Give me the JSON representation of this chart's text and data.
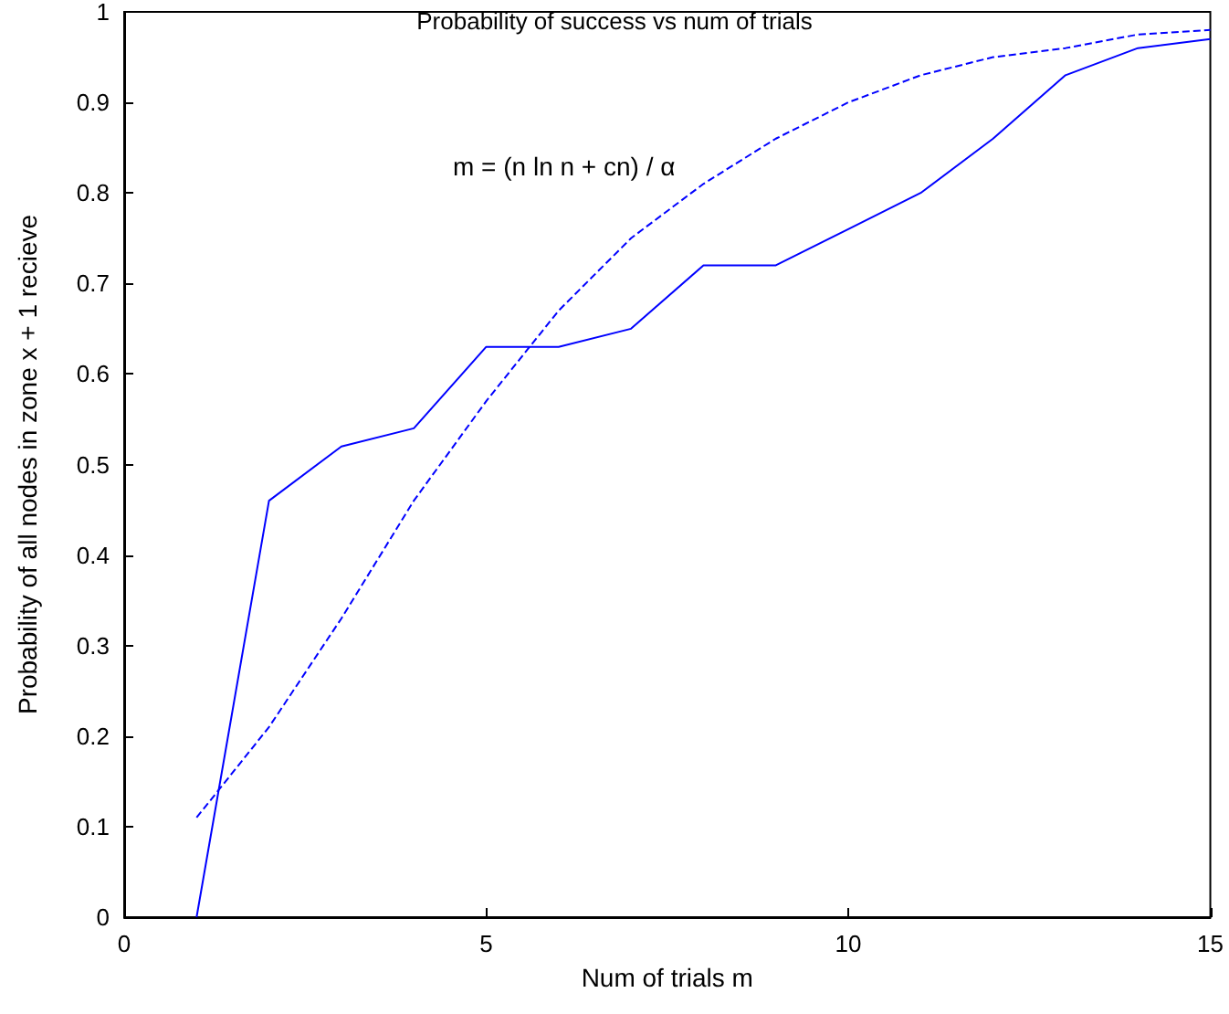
{
  "chart_data": {
    "type": "line",
    "title": "Probability of success vs num of trials",
    "xlabel": "Num of trials m",
    "ylabel": "Probability of all nodes in zone x + 1 recieve",
    "annotations": [
      "m = (n ln n + cn) / α"
    ],
    "x": [
      1,
      2,
      3,
      4,
      5,
      6,
      7,
      8,
      9,
      10,
      11,
      12,
      13,
      14,
      15
    ],
    "series": [
      {
        "color": "#0000ff",
        "line_style": "solid",
        "values": [
          0,
          0.46,
          0.52,
          0.54,
          0.63,
          0.63,
          0.65,
          0.72,
          0.72,
          0.76,
          0.8,
          0.86,
          0.93,
          0.96,
          0.97
        ]
      },
      {
        "color": "#0000ff",
        "line_style": "dashed",
        "values": [
          0.11,
          0.21,
          0.33,
          0.46,
          0.57,
          0.67,
          0.75,
          0.81,
          0.86,
          0.9,
          0.93,
          0.95,
          0.96,
          0.975,
          0.98
        ]
      }
    ],
    "xlim": [
      0,
      15
    ],
    "xticks": [
      0,
      5,
      10,
      15
    ],
    "ylim": [
      0,
      1
    ],
    "yticks": [
      0,
      0.1,
      0.2,
      0.3,
      0.4,
      0.5,
      0.6,
      0.7,
      0.8,
      0.9,
      1
    ],
    "grid": false,
    "marker": "none"
  }
}
